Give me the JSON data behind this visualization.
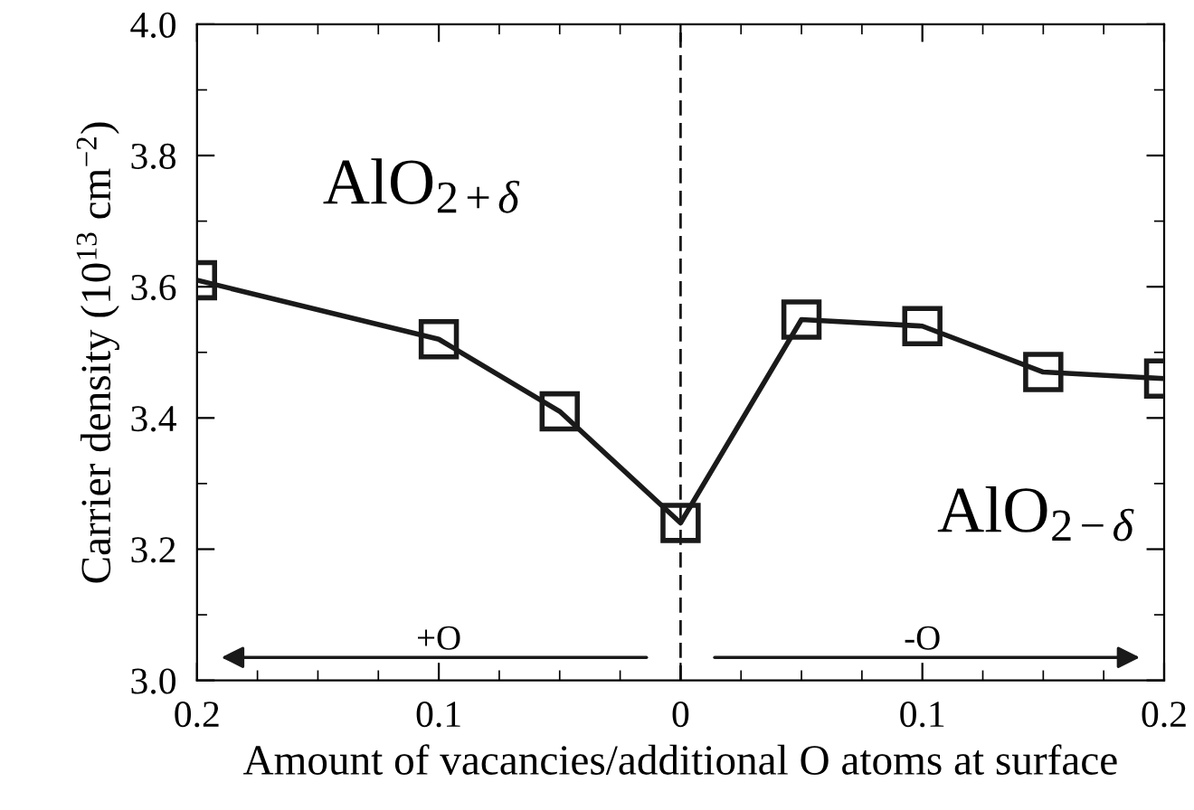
{
  "chart_data": {
    "type": "line",
    "xlabel": "Amount of vacancies/additional O atoms at surface",
    "ylabel": "Carrier density (10$^{13}$ cm$^{−2}$)",
    "x": [
      -0.2,
      -0.1,
      -0.05,
      0,
      0.05,
      0.1,
      0.15,
      0.2
    ],
    "series": [
      {
        "color": "#1a1a1a",
        "values": [
          3.61,
          3.52,
          3.41,
          3.24,
          3.55,
          3.54,
          3.47,
          3.46
        ]
      }
    ],
    "marker": "square",
    "line_style": "solid",
    "grid": false,
    "legend": false,
    "xlim": [
      -0.2,
      0.2
    ],
    "xticks": [
      {
        "value": -0.2,
        "label": "0.2"
      },
      {
        "value": -0.1,
        "label": "0.1"
      },
      0,
      0.1,
      0.2
    ],
    "ylim": [
      3.0,
      4.0
    ],
    "yticks": [
      {
        "value": 3.0,
        "label": "3.0"
      },
      3.2,
      3.4,
      3.6,
      3.8,
      {
        "value": 4.0,
        "label": "4.0"
      }
    ],
    "ref_lines": [
      {
        "axis": "x",
        "value": 0,
        "label": null,
        "line_style": "dashed",
        "color": "#1a1a1a"
      }
    ],
    "annotations": [
      "AlO$_{2+δ}$",
      "AlO$_{2−δ}$",
      "+O",
      "-O"
    ]
  }
}
